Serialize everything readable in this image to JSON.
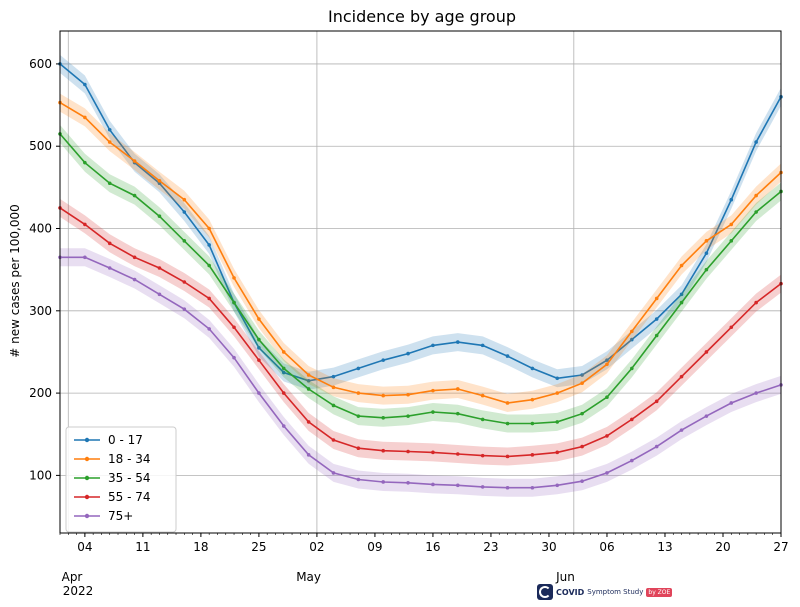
{
  "chart_data": {
    "type": "line",
    "title": "Incidence by age group",
    "ylabel": "# new cases per 100,000",
    "xlabel": "",
    "ylim": [
      30,
      640
    ],
    "yticks": [
      100,
      200,
      300,
      400,
      500,
      600
    ],
    "x_day_range": [
      0,
      87
    ],
    "x_tick_days": [
      3,
      10,
      17,
      24,
      31,
      38,
      45,
      52,
      59,
      66,
      73,
      80,
      87
    ],
    "x_tick_labels": [
      "04",
      "11",
      "18",
      "25",
      "02",
      "09",
      "16",
      "23",
      "30",
      "06",
      "13",
      "20",
      "27"
    ],
    "month_labels": [
      {
        "label": "Apr",
        "day": 0
      },
      {
        "label": "May",
        "day": 30
      },
      {
        "label": "Jun",
        "day": 61
      }
    ],
    "year_label": "2022",
    "month_lines_days": [
      1,
      31,
      62
    ],
    "grid": true,
    "legend_position": "lower-left",
    "series": [
      {
        "name": "0 - 17",
        "color": "#1f77b4",
        "points": [
          [
            0,
            600
          ],
          [
            3,
            575
          ],
          [
            6,
            520
          ],
          [
            9,
            480
          ],
          [
            12,
            455
          ],
          [
            15,
            420
          ],
          [
            18,
            380
          ],
          [
            21,
            310
          ],
          [
            24,
            255
          ],
          [
            27,
            225
          ],
          [
            30,
            215
          ],
          [
            33,
            220
          ],
          [
            36,
            230
          ],
          [
            39,
            240
          ],
          [
            42,
            248
          ],
          [
            45,
            258
          ],
          [
            48,
            262
          ],
          [
            51,
            258
          ],
          [
            54,
            245
          ],
          [
            57,
            230
          ],
          [
            60,
            218
          ],
          [
            63,
            222
          ],
          [
            66,
            240
          ],
          [
            69,
            265
          ],
          [
            72,
            290
          ],
          [
            75,
            320
          ],
          [
            78,
            370
          ],
          [
            81,
            435
          ],
          [
            84,
            505
          ],
          [
            87,
            560
          ]
        ]
      },
      {
        "name": "18 - 34",
        "color": "#ff7f0e",
        "points": [
          [
            0,
            553
          ],
          [
            3,
            535
          ],
          [
            6,
            505
          ],
          [
            9,
            482
          ],
          [
            12,
            458
          ],
          [
            15,
            435
          ],
          [
            18,
            400
          ],
          [
            21,
            340
          ],
          [
            24,
            290
          ],
          [
            27,
            250
          ],
          [
            30,
            222
          ],
          [
            33,
            207
          ],
          [
            36,
            200
          ],
          [
            39,
            197
          ],
          [
            42,
            198
          ],
          [
            45,
            203
          ],
          [
            48,
            205
          ],
          [
            51,
            197
          ],
          [
            54,
            188
          ],
          [
            57,
            192
          ],
          [
            60,
            200
          ],
          [
            63,
            212
          ],
          [
            66,
            235
          ],
          [
            69,
            275
          ],
          [
            72,
            315
          ],
          [
            75,
            355
          ],
          [
            78,
            385
          ],
          [
            81,
            405
          ],
          [
            84,
            440
          ],
          [
            87,
            468
          ]
        ]
      },
      {
        "name": "35 - 54",
        "color": "#2ca02c",
        "points": [
          [
            0,
            515
          ],
          [
            3,
            480
          ],
          [
            6,
            455
          ],
          [
            9,
            440
          ],
          [
            12,
            415
          ],
          [
            15,
            385
          ],
          [
            18,
            355
          ],
          [
            21,
            310
          ],
          [
            24,
            265
          ],
          [
            27,
            230
          ],
          [
            30,
            205
          ],
          [
            33,
            185
          ],
          [
            36,
            172
          ],
          [
            39,
            170
          ],
          [
            42,
            172
          ],
          [
            45,
            177
          ],
          [
            48,
            175
          ],
          [
            51,
            168
          ],
          [
            54,
            163
          ],
          [
            57,
            163
          ],
          [
            60,
            165
          ],
          [
            63,
            175
          ],
          [
            66,
            195
          ],
          [
            69,
            230
          ],
          [
            72,
            270
          ],
          [
            75,
            310
          ],
          [
            78,
            350
          ],
          [
            81,
            385
          ],
          [
            84,
            420
          ],
          [
            87,
            445
          ]
        ]
      },
      {
        "name": "55 - 74",
        "color": "#d62728",
        "points": [
          [
            0,
            425
          ],
          [
            3,
            405
          ],
          [
            6,
            382
          ],
          [
            9,
            365
          ],
          [
            12,
            352
          ],
          [
            15,
            335
          ],
          [
            18,
            315
          ],
          [
            21,
            280
          ],
          [
            24,
            240
          ],
          [
            27,
            200
          ],
          [
            30,
            165
          ],
          [
            33,
            143
          ],
          [
            36,
            133
          ],
          [
            39,
            130
          ],
          [
            42,
            129
          ],
          [
            45,
            128
          ],
          [
            48,
            126
          ],
          [
            51,
            124
          ],
          [
            54,
            123
          ],
          [
            57,
            125
          ],
          [
            60,
            128
          ],
          [
            63,
            135
          ],
          [
            66,
            148
          ],
          [
            69,
            168
          ],
          [
            72,
            190
          ],
          [
            75,
            220
          ],
          [
            78,
            250
          ],
          [
            81,
            280
          ],
          [
            84,
            310
          ],
          [
            87,
            333
          ]
        ]
      },
      {
        "name": "75+",
        "color": "#9467bd",
        "points": [
          [
            0,
            365
          ],
          [
            3,
            365
          ],
          [
            6,
            352
          ],
          [
            9,
            338
          ],
          [
            12,
            320
          ],
          [
            15,
            302
          ],
          [
            18,
            278
          ],
          [
            21,
            243
          ],
          [
            24,
            200
          ],
          [
            27,
            160
          ],
          [
            30,
            125
          ],
          [
            33,
            103
          ],
          [
            36,
            95
          ],
          [
            39,
            92
          ],
          [
            42,
            91
          ],
          [
            45,
            89
          ],
          [
            48,
            88
          ],
          [
            51,
            86
          ],
          [
            54,
            85
          ],
          [
            57,
            85
          ],
          [
            60,
            88
          ],
          [
            63,
            93
          ],
          [
            66,
            103
          ],
          [
            69,
            118
          ],
          [
            72,
            135
          ],
          [
            75,
            155
          ],
          [
            78,
            172
          ],
          [
            81,
            188
          ],
          [
            84,
            200
          ],
          [
            87,
            210
          ]
        ]
      }
    ]
  },
  "watermark": {
    "name": "COVID",
    "text": "Symptom Study",
    "badge": "by ZOE"
  }
}
